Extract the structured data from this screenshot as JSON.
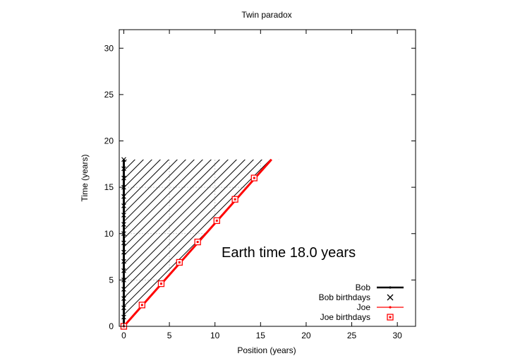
{
  "chart_data": {
    "type": "line",
    "title": "Twin paradox",
    "xlabel": "Position (years)",
    "ylabel": "Time (years)",
    "xlim": [
      -0.5,
      32
    ],
    "ylim": [
      0,
      32
    ],
    "xticks": [
      0,
      5,
      10,
      15,
      20,
      25,
      30
    ],
    "yticks": [
      0,
      5,
      10,
      15,
      20,
      25,
      30
    ],
    "grid": true,
    "legend_position": "bottom-right",
    "annotation": "Earth time 18.0 years",
    "series": [
      {
        "name": "Bob",
        "color": "#000000",
        "style": "line-dot",
        "x": [
          0,
          0
        ],
        "y": [
          0,
          18
        ]
      },
      {
        "name": "Bob birthdays",
        "color": "#000000",
        "style": "x-marker",
        "x": [
          0,
          0,
          0,
          0,
          0,
          0,
          0,
          0,
          0,
          0,
          0,
          0,
          0,
          0,
          0,
          0,
          0,
          0,
          0
        ],
        "y": [
          0,
          1,
          2,
          3,
          4,
          5,
          6,
          7,
          8,
          9,
          10,
          11,
          12,
          13,
          14,
          15,
          16,
          17,
          18
        ]
      },
      {
        "name": "Joe",
        "color": "#ff0000",
        "style": "line-dot",
        "x": [
          0,
          16.2
        ],
        "y": [
          0,
          18
        ]
      },
      {
        "name": "Joe birthdays",
        "color": "#ff0000",
        "style": "square-marker",
        "x": [
          0,
          2.0,
          4.1,
          6.1,
          8.1,
          10.2,
          12.2,
          14.3
        ],
        "y": [
          0,
          2.3,
          4.6,
          6.9,
          9.1,
          11.4,
          13.7,
          16.0
        ]
      }
    ],
    "hatch_region": {
      "x_at_top": 16.2,
      "y_top": 18
    }
  }
}
